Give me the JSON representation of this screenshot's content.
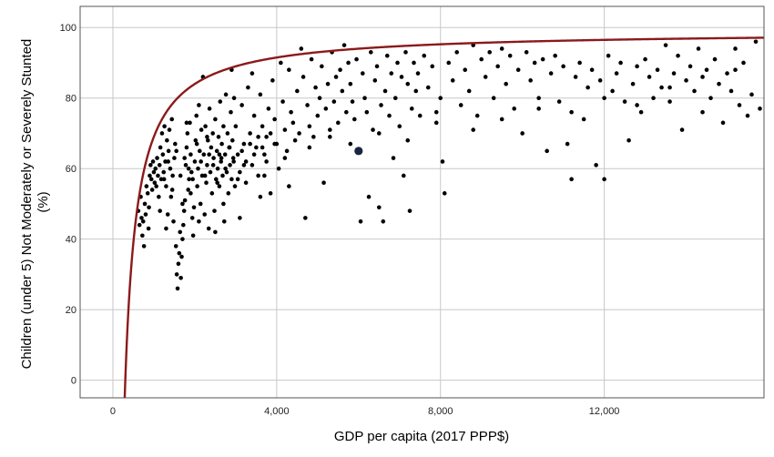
{
  "chart_data": {
    "type": "scatter",
    "xlabel": "GDP per capita (2017 PPP$)",
    "ylabel_line1": "Children (under 5) Not Moderately or Severely Stunted",
    "ylabel_line2": "(%)",
    "xlim": [
      -800,
      15900
    ],
    "ylim": [
      -5,
      106
    ],
    "x_ticks": [
      {
        "value": 0,
        "label": "0"
      },
      {
        "value": 4000,
        "label": "4,000"
      },
      {
        "value": 8000,
        "label": "8,000"
      },
      {
        "value": 12000,
        "label": "12,000"
      }
    ],
    "y_ticks": [
      {
        "value": 0,
        "label": "0"
      },
      {
        "value": 20,
        "label": "20"
      },
      {
        "value": 40,
        "label": "40"
      },
      {
        "value": 60,
        "label": "60"
      },
      {
        "value": 80,
        "label": "80"
      },
      {
        "value": 100,
        "label": "100"
      }
    ],
    "grid": true,
    "fit_curve": {
      "type": "reciprocal",
      "a": 99.0,
      "b": 30000,
      "color": "#8b1a1a"
    },
    "highlight_point": {
      "x": 6000,
      "y": 65
    },
    "colors": {
      "points": "#000000",
      "highlight": "#1a2540",
      "grid": "#c8c8c8",
      "axis": "#555555"
    },
    "points": [
      [
        620,
        48
      ],
      [
        650,
        44
      ],
      [
        680,
        52
      ],
      [
        700,
        46
      ],
      [
        720,
        41
      ],
      [
        740,
        45
      ],
      [
        760,
        38
      ],
      [
        780,
        50
      ],
      [
        800,
        47
      ],
      [
        820,
        55
      ],
      [
        850,
        53
      ],
      [
        870,
        43
      ],
      [
        880,
        49
      ],
      [
        900,
        58
      ],
      [
        920,
        61
      ],
      [
        940,
        57
      ],
      [
        960,
        54
      ],
      [
        980,
        62
      ],
      [
        1000,
        59
      ],
      [
        1020,
        56
      ],
      [
        1040,
        60
      ],
      [
        1060,
        55
      ],
      [
        1080,
        63
      ],
      [
        1100,
        58
      ],
      [
        1120,
        52
      ],
      [
        1140,
        61
      ],
      [
        1160,
        66
      ],
      [
        1180,
        57
      ],
      [
        1200,
        70
      ],
      [
        1220,
        64
      ],
      [
        1240,
        59
      ],
      [
        1260,
        72
      ],
      [
        1280,
        62
      ],
      [
        1300,
        55
      ],
      [
        1320,
        68
      ],
      [
        1340,
        47
      ],
      [
        1360,
        65
      ],
      [
        1380,
        71
      ],
      [
        1400,
        60
      ],
      [
        1420,
        52
      ],
      [
        1440,
        74
      ],
      [
        1460,
        58
      ],
      [
        1480,
        45
      ],
      [
        1500,
        63
      ],
      [
        1520,
        67
      ],
      [
        1540,
        38
      ],
      [
        1560,
        30
      ],
      [
        1580,
        26
      ],
      [
        1600,
        33
      ],
      [
        1620,
        36
      ],
      [
        1640,
        42
      ],
      [
        1660,
        29
      ],
      [
        1680,
        35
      ],
      [
        1700,
        40
      ],
      [
        1720,
        44
      ],
      [
        1740,
        48
      ],
      [
        1760,
        51
      ],
      [
        1780,
        61
      ],
      [
        1800,
        66
      ],
      [
        1820,
        70
      ],
      [
        1840,
        54
      ],
      [
        1860,
        57
      ],
      [
        1880,
        73
      ],
      [
        1900,
        64
      ],
      [
        1920,
        59
      ],
      [
        1940,
        46
      ],
      [
        1960,
        41
      ],
      [
        1980,
        49
      ],
      [
        2000,
        62
      ],
      [
        2020,
        68
      ],
      [
        2040,
        75
      ],
      [
        2060,
        55
      ],
      [
        2080,
        60
      ],
      [
        2100,
        78
      ],
      [
        2120,
        65
      ],
      [
        2140,
        50
      ],
      [
        2160,
        71
      ],
      [
        2180,
        58
      ],
      [
        2200,
        86
      ],
      [
        2220,
        64
      ],
      [
        2240,
        47
      ],
      [
        2260,
        72
      ],
      [
        2280,
        56
      ],
      [
        2300,
        61
      ],
      [
        2320,
        68
      ],
      [
        2340,
        43
      ],
      [
        2360,
        77
      ],
      [
        2380,
        59
      ],
      [
        2400,
        66
      ],
      [
        2420,
        53
      ],
      [
        2440,
        70
      ],
      [
        2460,
        63
      ],
      [
        2480,
        48
      ],
      [
        2500,
        74
      ],
      [
        2520,
        57
      ],
      [
        2540,
        65
      ],
      [
        2560,
        60
      ],
      [
        2580,
        69
      ],
      [
        2600,
        55
      ],
      [
        2620,
        79
      ],
      [
        2640,
        62
      ],
      [
        2660,
        67
      ],
      [
        2680,
        58
      ],
      [
        2700,
        72
      ],
      [
        2720,
        45
      ],
      [
        2740,
        64
      ],
      [
        2760,
        81
      ],
      [
        2780,
        59
      ],
      [
        2800,
        70
      ],
      [
        2820,
        53
      ],
      [
        2840,
        66
      ],
      [
        2860,
        61
      ],
      [
        2880,
        76
      ],
      [
        2900,
        57
      ],
      [
        2920,
        68
      ],
      [
        2940,
        63
      ],
      [
        2960,
        80
      ],
      [
        2980,
        55
      ],
      [
        3000,
        72
      ],
      [
        3050,
        64
      ],
      [
        3100,
        59
      ],
      [
        3150,
        78
      ],
      [
        3200,
        67
      ],
      [
        3250,
        56
      ],
      [
        3300,
        83
      ],
      [
        3350,
        70
      ],
      [
        3400,
        61
      ],
      [
        3450,
        75
      ],
      [
        3500,
        66
      ],
      [
        3550,
        58
      ],
      [
        3600,
        81
      ],
      [
        3650,
        72
      ],
      [
        3700,
        64
      ],
      [
        3750,
        69
      ],
      [
        3800,
        77
      ],
      [
        3850,
        53
      ],
      [
        3900,
        85
      ],
      [
        3950,
        74
      ],
      [
        4000,
        67
      ],
      [
        4050,
        60
      ],
      [
        4100,
        90
      ],
      [
        4150,
        79
      ],
      [
        4200,
        71
      ],
      [
        4250,
        65
      ],
      [
        4300,
        88
      ],
      [
        4350,
        76
      ],
      [
        4400,
        73
      ],
      [
        4450,
        68
      ],
      [
        4500,
        82
      ],
      [
        4550,
        70
      ],
      [
        4600,
        94
      ],
      [
        4650,
        86
      ],
      [
        4700,
        46
      ],
      [
        4750,
        78
      ],
      [
        4800,
        72
      ],
      [
        4850,
        91
      ],
      [
        4900,
        69
      ],
      [
        4950,
        83
      ],
      [
        5000,
        75
      ],
      [
        5050,
        80
      ],
      [
        5100,
        89
      ],
      [
        5150,
        56
      ],
      [
        5200,
        77
      ],
      [
        5250,
        84
      ],
      [
        5300,
        71
      ],
      [
        5350,
        93
      ],
      [
        5400,
        79
      ],
      [
        5450,
        86
      ],
      [
        5500,
        73
      ],
      [
        5550,
        88
      ],
      [
        5600,
        82
      ],
      [
        5650,
        95
      ],
      [
        5700,
        76
      ],
      [
        5750,
        90
      ],
      [
        5800,
        84
      ],
      [
        5850,
        79
      ],
      [
        5900,
        74
      ],
      [
        5950,
        91
      ],
      [
        6050,
        45
      ],
      [
        6100,
        87
      ],
      [
        6150,
        80
      ],
      [
        6200,
        76
      ],
      [
        6250,
        52
      ],
      [
        6300,
        93
      ],
      [
        6350,
        71
      ],
      [
        6400,
        85
      ],
      [
        6450,
        89
      ],
      [
        6500,
        49
      ],
      [
        6550,
        78
      ],
      [
        6600,
        45
      ],
      [
        6650,
        82
      ],
      [
        6700,
        92
      ],
      [
        6750,
        75
      ],
      [
        6800,
        87
      ],
      [
        6850,
        63
      ],
      [
        6900,
        80
      ],
      [
        6950,
        90
      ],
      [
        7000,
        72
      ],
      [
        7050,
        86
      ],
      [
        7100,
        58
      ],
      [
        7150,
        93
      ],
      [
        7200,
        84
      ],
      [
        7250,
        48
      ],
      [
        7300,
        77
      ],
      [
        7350,
        90
      ],
      [
        7400,
        82
      ],
      [
        7450,
        87
      ],
      [
        7500,
        75
      ],
      [
        7600,
        92
      ],
      [
        7700,
        83
      ],
      [
        7800,
        89
      ],
      [
        7900,
        76
      ],
      [
        8000,
        80
      ],
      [
        8050,
        62
      ],
      [
        8100,
        53
      ],
      [
        8200,
        90
      ],
      [
        8300,
        85
      ],
      [
        8400,
        93
      ],
      [
        8500,
        78
      ],
      [
        8600,
        88
      ],
      [
        8700,
        82
      ],
      [
        8800,
        95
      ],
      [
        8900,
        75
      ],
      [
        9000,
        91
      ],
      [
        9100,
        86
      ],
      [
        9200,
        93
      ],
      [
        9300,
        80
      ],
      [
        9400,
        89
      ],
      [
        9500,
        94
      ],
      [
        9600,
        84
      ],
      [
        9700,
        92
      ],
      [
        9800,
        77
      ],
      [
        9900,
        88
      ],
      [
        10000,
        70
      ],
      [
        10100,
        93
      ],
      [
        10200,
        85
      ],
      [
        10300,
        90
      ],
      [
        10400,
        80
      ],
      [
        10500,
        91
      ],
      [
        10600,
        65
      ],
      [
        10700,
        87
      ],
      [
        10800,
        92
      ],
      [
        10900,
        79
      ],
      [
        11000,
        89
      ],
      [
        11100,
        67
      ],
      [
        11200,
        57
      ],
      [
        11300,
        86
      ],
      [
        11400,
        90
      ],
      [
        11500,
        74
      ],
      [
        11600,
        83
      ],
      [
        11700,
        88
      ],
      [
        11800,
        61
      ],
      [
        11900,
        85
      ],
      [
        12000,
        57
      ],
      [
        12100,
        92
      ],
      [
        12200,
        82
      ],
      [
        12300,
        87
      ],
      [
        12400,
        90
      ],
      [
        12500,
        79
      ],
      [
        12600,
        68
      ],
      [
        12700,
        84
      ],
      [
        12800,
        89
      ],
      [
        12900,
        76
      ],
      [
        13000,
        91
      ],
      [
        13100,
        86
      ],
      [
        13200,
        80
      ],
      [
        13300,
        88
      ],
      [
        13400,
        83
      ],
      [
        13500,
        95
      ],
      [
        13600,
        79
      ],
      [
        13700,
        87
      ],
      [
        13800,
        92
      ],
      [
        13900,
        71
      ],
      [
        14000,
        85
      ],
      [
        14100,
        89
      ],
      [
        14200,
        82
      ],
      [
        14300,
        94
      ],
      [
        14400,
        76
      ],
      [
        14500,
        88
      ],
      [
        14600,
        80
      ],
      [
        14700,
        91
      ],
      [
        14800,
        84
      ],
      [
        14900,
        73
      ],
      [
        15000,
        87
      ],
      [
        15100,
        82
      ],
      [
        15200,
        94
      ],
      [
        15300,
        78
      ],
      [
        15400,
        90
      ],
      [
        15500,
        75
      ],
      [
        15600,
        81
      ],
      [
        15700,
        96
      ],
      [
        15800,
        77
      ],
      [
        1150,
        48
      ],
      [
        1300,
        43
      ],
      [
        1700,
        50
      ],
      [
        1900,
        53
      ],
      [
        2100,
        45
      ],
      [
        2500,
        42
      ],
      [
        2700,
        50
      ],
      [
        3100,
        46
      ],
      [
        3600,
        52
      ],
      [
        4300,
        55
      ],
      [
        2900,
        88
      ],
      [
        3400,
        87
      ],
      [
        1800,
        73
      ],
      [
        2300,
        69
      ],
      [
        2600,
        64
      ],
      [
        3200,
        61
      ],
      [
        3700,
        58
      ],
      [
        4200,
        63
      ],
      [
        4800,
        66
      ],
      [
        5300,
        69
      ],
      [
        5800,
        67
      ],
      [
        6500,
        70
      ],
      [
        7200,
        68
      ],
      [
        7900,
        73
      ],
      [
        8800,
        71
      ],
      [
        9500,
        74
      ],
      [
        10400,
        77
      ],
      [
        11200,
        76
      ],
      [
        12000,
        80
      ],
      [
        12800,
        78
      ],
      [
        13600,
        83
      ],
      [
        14400,
        86
      ],
      [
        15200,
        88
      ],
      [
        1250,
        57
      ],
      [
        1350,
        62
      ],
      [
        1450,
        54
      ],
      [
        1550,
        65
      ],
      [
        1650,
        58
      ],
      [
        1750,
        63
      ],
      [
        1850,
        60
      ],
      [
        1950,
        57
      ],
      [
        2050,
        67
      ],
      [
        2150,
        62
      ],
      [
        2250,
        58
      ],
      [
        2350,
        64
      ],
      [
        2450,
        61
      ],
      [
        2550,
        56
      ],
      [
        2650,
        63
      ],
      [
        2750,
        60
      ],
      [
        2850,
        66
      ],
      [
        2950,
        62
      ],
      [
        3050,
        57
      ],
      [
        3150,
        65
      ],
      [
        3250,
        62
      ],
      [
        3350,
        67
      ],
      [
        3450,
        64
      ],
      [
        3550,
        69
      ],
      [
        3650,
        66
      ],
      [
        3750,
        62
      ],
      [
        3850,
        70
      ],
      [
        3950,
        67
      ]
    ]
  }
}
